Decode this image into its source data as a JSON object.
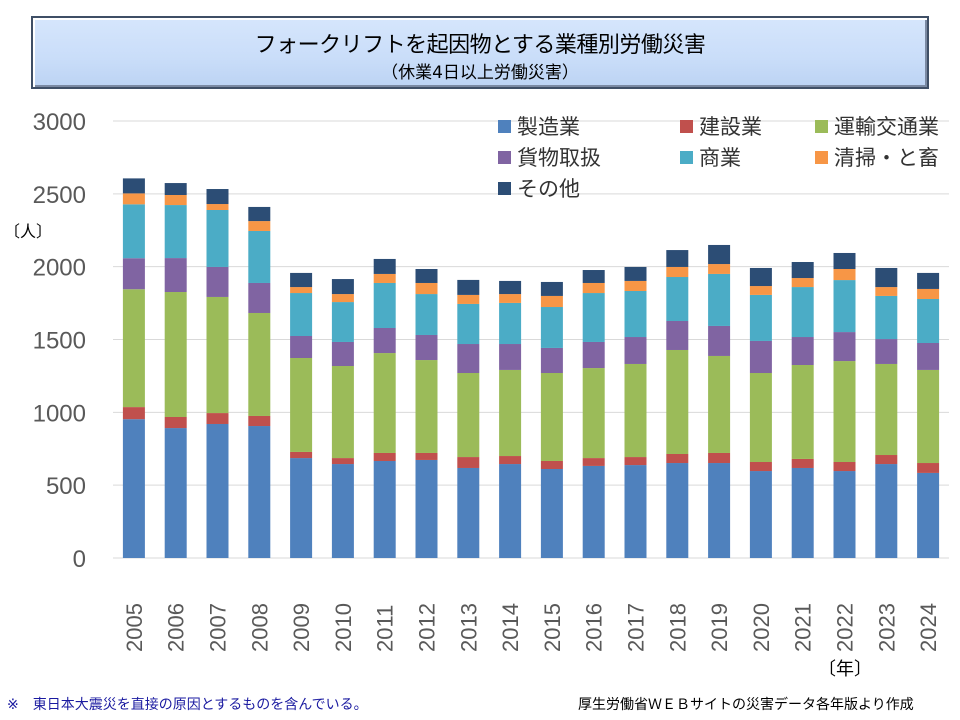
{
  "title": {
    "main": "フォークリフトを起因物とする業種別労働災害",
    "sub": "（休業4日以上労働災害）"
  },
  "y_unit_label": "〔人〕",
  "x_unit_label": "〔年〕",
  "footnote": "※　東日本大震災を直接の原因とするものを含んでいる。",
  "source": "厚生労働省ＷＥＢサイトの災害データ各年版より作成",
  "chart_data": {
    "type": "bar",
    "stacked": true,
    "title": "フォークリフトを起因物とする業種別労働災害（休業4日以上労働災害）",
    "xlabel": "〔年〕",
    "ylabel": "〔人〕",
    "ylim": [
      0,
      3000
    ],
    "yticks": [
      0,
      500,
      1000,
      1500,
      2000,
      2500,
      3000
    ],
    "grid": true,
    "legend_position": "top-right",
    "categories": [
      "2005",
      "2006",
      "2007",
      "2008",
      "2009",
      "2010",
      "2011",
      "2012",
      "2013",
      "2014",
      "2015",
      "2016",
      "2017",
      "2018",
      "2019",
      "2020",
      "2021",
      "2022",
      "2023",
      "2024"
    ],
    "series": [
      {
        "name": "製造業",
        "color": "#4f81bd",
        "values": [
          953,
          892,
          920,
          906,
          686,
          645,
          666,
          673,
          618,
          645,
          611,
          632,
          638,
          652,
          652,
          597,
          618,
          597,
          645,
          584
        ]
      },
      {
        "name": "建設業",
        "color": "#c0504d",
        "values": [
          83,
          76,
          75,
          69,
          42,
          41,
          55,
          48,
          75,
          55,
          55,
          54,
          55,
          62,
          69,
          62,
          62,
          62,
          62,
          68
        ]
      },
      {
        "name": "運輸交通業",
        "color": "#9bbb59",
        "values": [
          809,
          858,
          797,
          707,
          645,
          632,
          686,
          638,
          577,
          591,
          604,
          618,
          639,
          714,
          666,
          611,
          645,
          693,
          625,
          639
        ]
      },
      {
        "name": "貨物取扱",
        "color": "#8064a2",
        "values": [
          213,
          233,
          206,
          206,
          151,
          165,
          172,
          172,
          199,
          178,
          172,
          179,
          185,
          199,
          206,
          220,
          192,
          199,
          171,
          185
        ]
      },
      {
        "name": "商業",
        "color": "#4bacc6",
        "values": [
          370,
          364,
          391,
          357,
          295,
          274,
          309,
          281,
          275,
          282,
          281,
          336,
          316,
          302,
          357,
          316,
          343,
          357,
          296,
          302
        ]
      },
      {
        "name": "清掃・と畜",
        "color": "#f79646",
        "values": [
          75,
          69,
          41,
          68,
          41,
          55,
          62,
          76,
          62,
          61,
          76,
          69,
          69,
          69,
          68,
          61,
          62,
          76,
          61,
          69
        ]
      },
      {
        "name": "その他",
        "color": "#2c4d75",
        "values": [
          103,
          82,
          103,
          97,
          97,
          103,
          103,
          96,
          103,
          90,
          96,
          89,
          96,
          116,
          131,
          124,
          110,
          110,
          131,
          110
        ]
      }
    ]
  }
}
